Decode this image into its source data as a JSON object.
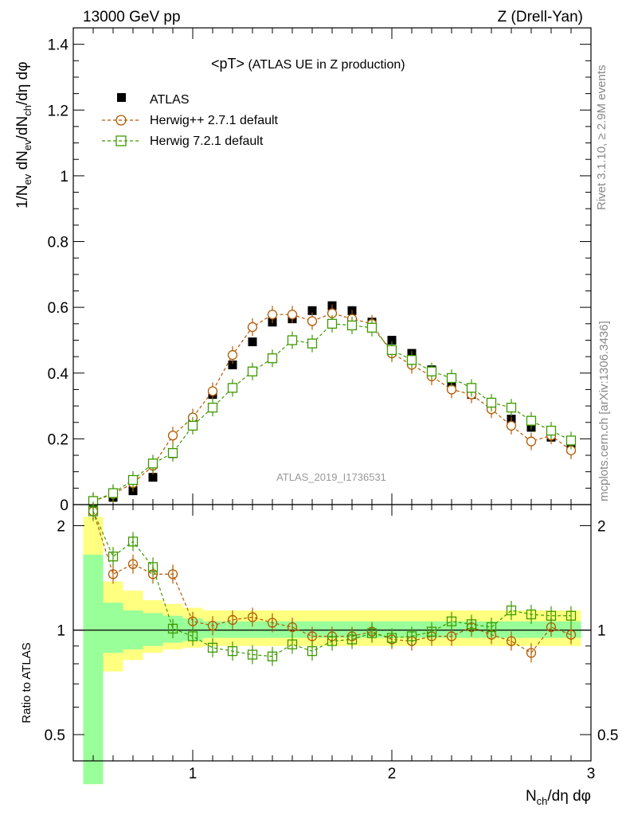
{
  "header": {
    "left": "13000 GeV pp",
    "right": "Z (Drell-Yan)"
  },
  "side_text": {
    "top": "Rivet 3.1.10, ≥ 2.9M events",
    "bottom": "mcplots.cern.ch [arXiv:1306.3436]"
  },
  "main_plot": {
    "title_sym": "<pT>",
    "title_rest": " (ATLAS UE in Z production)",
    "ylabel": {
      "p1": "1/N",
      "s1": "ev",
      "p2": " dN",
      "s2": "ev",
      "p3": "/dN",
      "s3": "ch",
      "p4": "/dη dφ"
    },
    "yticks": [
      "0",
      "0.2",
      "0.4",
      "0.6",
      "0.8",
      "1",
      "1.2",
      "1.4"
    ],
    "watermark": "ATLAS_2019_I1736531"
  },
  "ratio_plot": {
    "ylabel": "Ratio to ATLAS",
    "yticks_left": [
      "0.5",
      "1",
      "2"
    ],
    "yticks_right": [
      "0.5",
      "1",
      "2"
    ]
  },
  "xaxis": {
    "ticks": [
      "1",
      "2",
      "3"
    ],
    "label_main": "N",
    "label_sub": "ch",
    "label_rest": "/dη dφ"
  },
  "legend": [
    "ATLAS",
    "Herwig++ 2.7.1 default",
    "Herwig 7.2.1 default"
  ],
  "colors": {
    "data": "#000000",
    "herwigpp": "#b35900",
    "herwig7": "#3d9900",
    "band_inner": "#99ff99",
    "band_outer": "#ffff80"
  },
  "chart_data": {
    "type": "scatter",
    "title": "<pT> (ATLAS UE in Z production)",
    "xlabel": "N_ch/dη dφ",
    "ylabel": "1/N_ev dN_ev/dN_ch/dη dφ",
    "xlim": [
      0.4,
      3.0
    ],
    "ylim": [
      0,
      1.45
    ],
    "ratio_ylim": [
      0.42,
      2.3
    ],
    "x": [
      0.5,
      0.6,
      0.7,
      0.8,
      0.9,
      1.0,
      1.1,
      1.2,
      1.3,
      1.4,
      1.5,
      1.6,
      1.7,
      1.8,
      1.9,
      2.0,
      2.1,
      2.2,
      2.3,
      2.4,
      2.5,
      2.6,
      2.7,
      2.8,
      2.9
    ],
    "series": [
      {
        "name": "ATLAS",
        "style": "data",
        "values": [
          0.005,
          0.022,
          0.042,
          0.083,
          0.155,
          0.25,
          0.335,
          0.425,
          0.495,
          0.555,
          0.565,
          0.59,
          0.605,
          0.59,
          0.555,
          0.5,
          0.46,
          0.41,
          0.365,
          0.335,
          0.3,
          0.26,
          0.235,
          0.205,
          0.17
        ]
      },
      {
        "name": "Herwig++ 2.7.1 default",
        "style": "herwigpp",
        "values": [
          0.011,
          0.032,
          0.065,
          0.118,
          0.21,
          0.265,
          0.345,
          0.455,
          0.54,
          0.578,
          0.578,
          0.558,
          0.582,
          0.565,
          0.55,
          0.46,
          0.425,
          0.39,
          0.35,
          0.335,
          0.29,
          0.24,
          0.192,
          0.21,
          0.165
        ],
        "ratio": [
          2.2,
          1.45,
          1.55,
          1.45,
          1.45,
          1.06,
          1.03,
          1.07,
          1.09,
          1.05,
          1.02,
          0.96,
          0.96,
          0.96,
          0.99,
          0.94,
          0.93,
          0.96,
          0.96,
          1.02,
          0.97,
          0.93,
          0.86,
          1.02,
          0.97
        ]
      },
      {
        "name": "Herwig 7.2.1 default",
        "style": "herwig7",
        "values": [
          0.011,
          0.035,
          0.075,
          0.125,
          0.157,
          0.24,
          0.295,
          0.355,
          0.405,
          0.445,
          0.5,
          0.49,
          0.55,
          0.545,
          0.538,
          0.47,
          0.44,
          0.405,
          0.385,
          0.355,
          0.31,
          0.295,
          0.255,
          0.225,
          0.195
        ],
        "ratio": [
          2.2,
          1.63,
          1.8,
          1.52,
          1.01,
          0.96,
          0.89,
          0.87,
          0.85,
          0.84,
          0.91,
          0.87,
          0.93,
          0.94,
          0.98,
          0.95,
          0.96,
          0.99,
          1.06,
          1.04,
          1.02,
          1.14,
          1.11,
          1.1,
          1.1
        ]
      }
    ],
    "band_edges": [
      0.45,
      0.55,
      0.65,
      0.75,
      0.85,
      0.95,
      1.05,
      2.95
    ],
    "band_inner": [
      [
        0.36,
        1.65
      ],
      [
        0.86,
        1.2
      ],
      [
        0.88,
        1.14
      ],
      [
        0.9,
        1.12
      ],
      [
        0.92,
        1.1
      ],
      [
        0.93,
        1.08
      ],
      [
        0.95,
        1.06
      ]
    ],
    "band_outer": [
      [
        0.36,
        2.12
      ],
      [
        0.76,
        1.38
      ],
      [
        0.82,
        1.3
      ],
      [
        0.86,
        1.22
      ],
      [
        0.88,
        1.19
      ],
      [
        0.89,
        1.16
      ],
      [
        0.9,
        1.14
      ]
    ]
  }
}
